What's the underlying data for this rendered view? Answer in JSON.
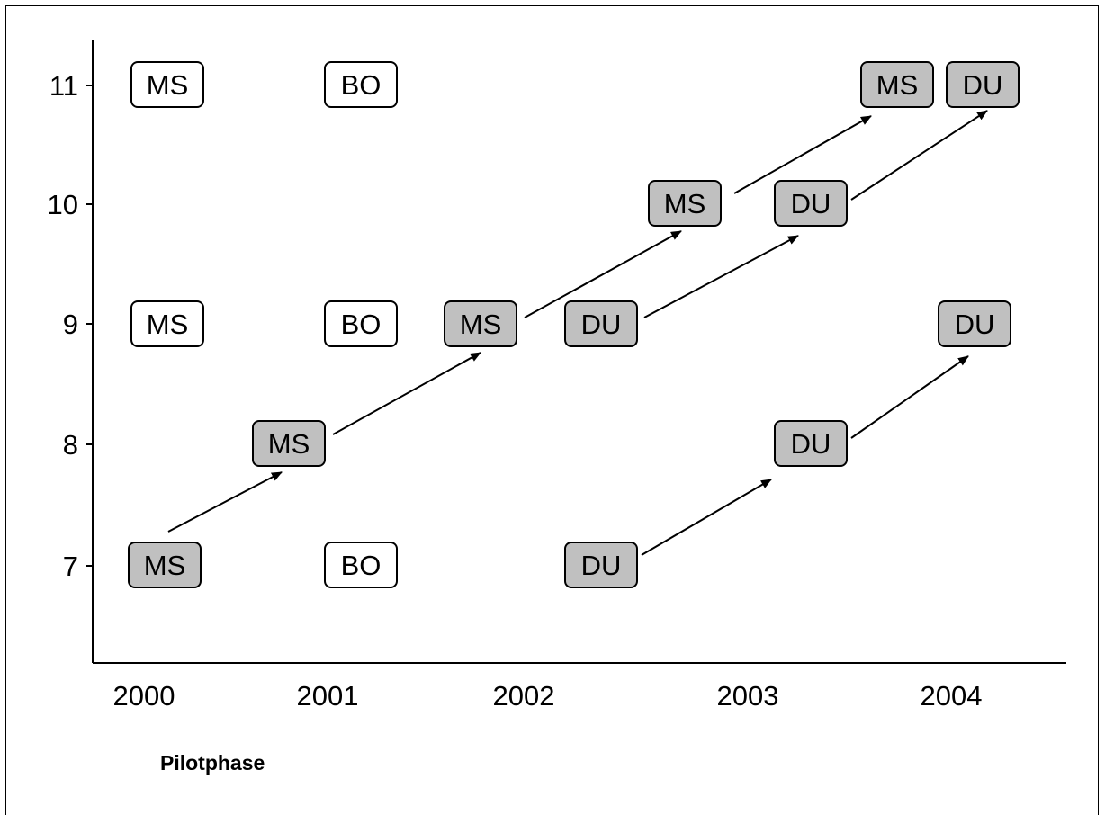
{
  "diagram": {
    "footer_label": "Pilotphase",
    "colors": {
      "filled": "#c0c0c0",
      "outline": "#ffffff",
      "stroke": "#000000"
    },
    "x_ticks": [
      "2000",
      "2001",
      "2002",
      "2003",
      "2004"
    ],
    "y_ticks": [
      "7",
      "8",
      "9",
      "10",
      "11"
    ],
    "boxes": [
      {
        "id": "ms-2000-11",
        "label": "MS",
        "filled": false
      },
      {
        "id": "bo-2001-11",
        "label": "BO",
        "filled": false
      },
      {
        "id": "ms-2003-11",
        "label": "MS",
        "filled": true
      },
      {
        "id": "du-2004-11",
        "label": "DU",
        "filled": true
      },
      {
        "id": "ms-2003-10",
        "label": "MS",
        "filled": true
      },
      {
        "id": "du-2003-10",
        "label": "DU",
        "filled": true
      },
      {
        "id": "ms-2000-9",
        "label": "MS",
        "filled": false
      },
      {
        "id": "bo-2001-9",
        "label": "BO",
        "filled": false
      },
      {
        "id": "ms-2002-9",
        "label": "MS",
        "filled": true
      },
      {
        "id": "du-2002-9",
        "label": "DU",
        "filled": true
      },
      {
        "id": "du-2004-9",
        "label": "DU",
        "filled": true
      },
      {
        "id": "ms-2001-8",
        "label": "MS",
        "filled": true
      },
      {
        "id": "du-2003-8",
        "label": "DU",
        "filled": true
      },
      {
        "id": "ms-2000-7",
        "label": "MS",
        "filled": true
      },
      {
        "id": "bo-2001-7",
        "label": "BO",
        "filled": false
      },
      {
        "id": "du-2002-7",
        "label": "DU",
        "filled": true
      }
    ],
    "arrows": [
      {
        "from": "ms-2000-7",
        "to": "ms-2001-8"
      },
      {
        "from": "ms-2001-8",
        "to": "ms-2002-9"
      },
      {
        "from": "ms-2002-9",
        "to": "ms-2003-10"
      },
      {
        "from": "ms-2003-10",
        "to": "ms-2003-11"
      },
      {
        "from": "du-2002-9",
        "to": "du-2003-10"
      },
      {
        "from": "du-2003-10",
        "to": "du-2004-11"
      },
      {
        "from": "du-2002-7",
        "to": "du-2003-8"
      },
      {
        "from": "du-2003-8",
        "to": "du-2004-9"
      }
    ]
  }
}
